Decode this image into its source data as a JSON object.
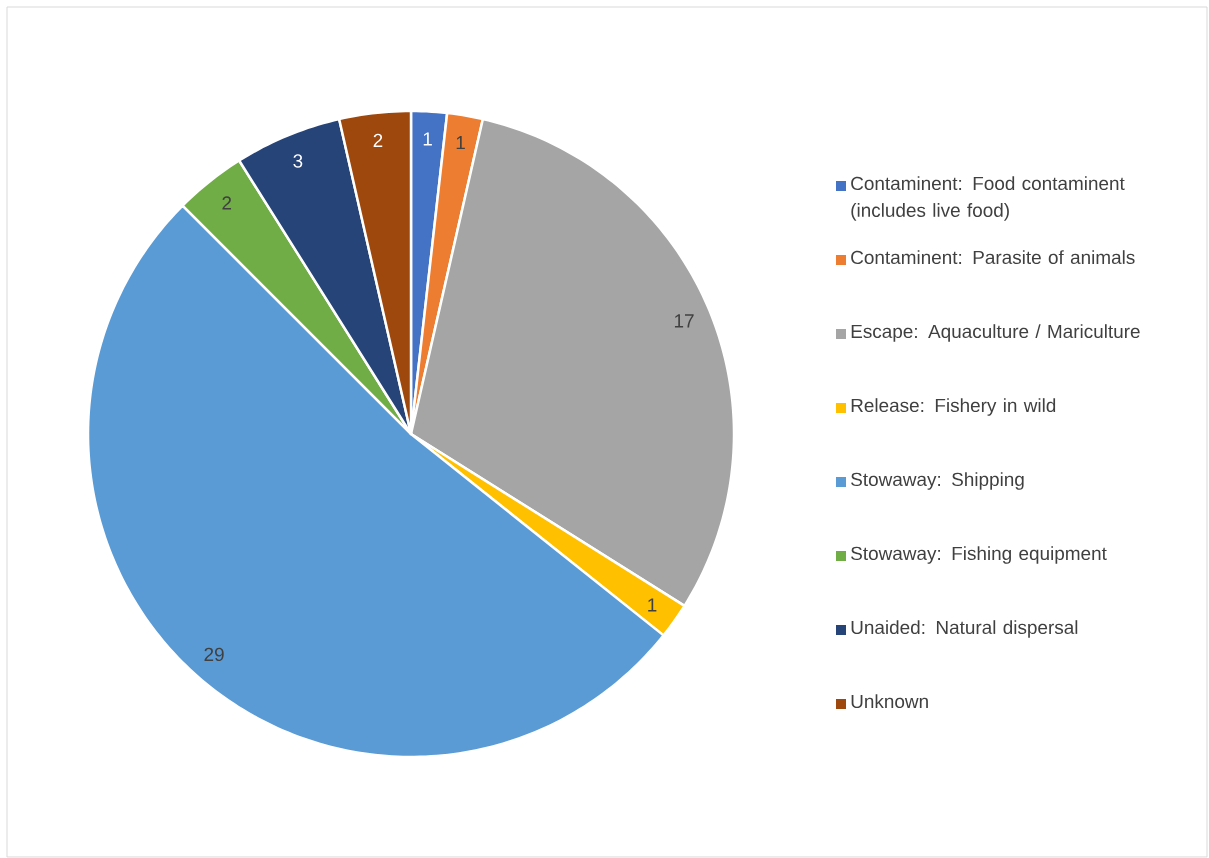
{
  "chart_data": {
    "type": "pie",
    "categories": [
      "Contaminent: Food contaminent (includes live food)",
      "Contaminent: Parasite of animals",
      "Escape: Aquaculture / Mariculture",
      "Release: Fishery in wild",
      "Stowaway: Shipping",
      "Stowaway: Fishing equipment",
      "Unaided: Natural dispersal",
      "Unknown"
    ],
    "values": [
      1,
      1,
      17,
      1,
      29,
      2,
      3,
      2
    ],
    "colors": [
      "#4472c4",
      "#ed7d31",
      "#a5a5a5",
      "#ffc000",
      "#5b9bd5",
      "#70ad47",
      "#264478",
      "#9e480e"
    ],
    "data_labels": true,
    "legend": "right"
  }
}
